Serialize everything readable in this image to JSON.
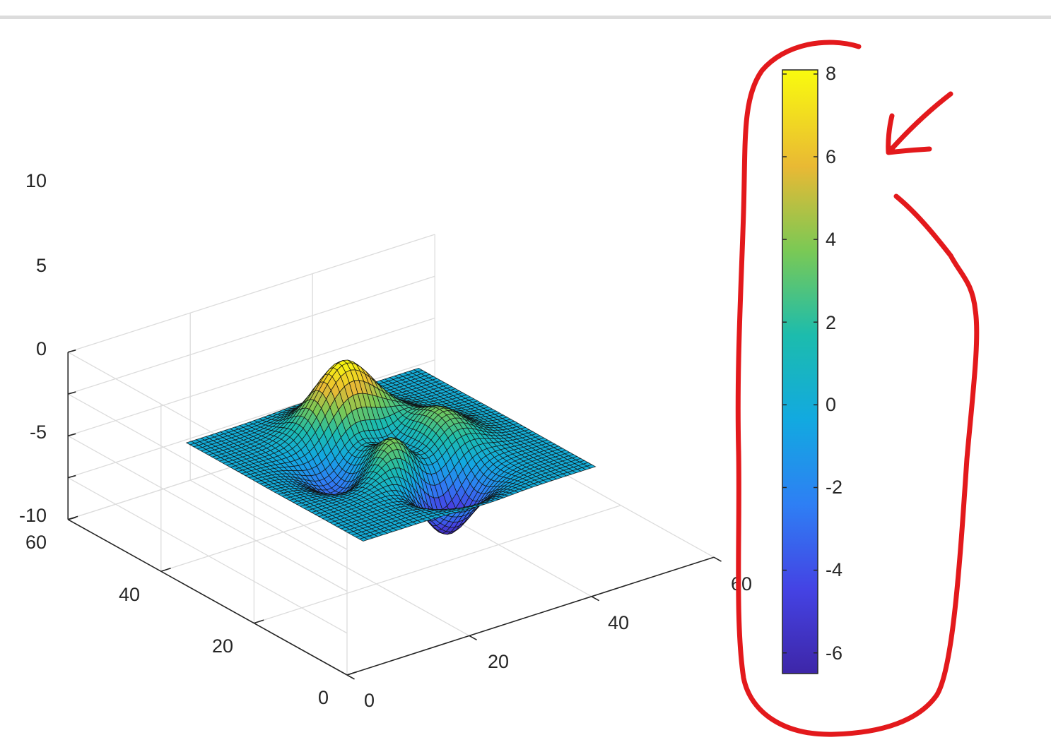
{
  "chart_data": {
    "type": "surface",
    "title": "",
    "xlabel": "",
    "ylabel": "",
    "zlabel": "",
    "colormap": "parula",
    "function": "peaks",
    "x_range": [
      0,
      60
    ],
    "y_range": [
      0,
      60
    ],
    "z_range": [
      -10,
      10
    ],
    "x_ticks": [
      "0",
      "20",
      "40",
      "60"
    ],
    "y_ticks": [
      "0",
      "20",
      "40",
      "60"
    ],
    "z_ticks": [
      "10",
      "5",
      "0",
      "-5",
      "-10"
    ],
    "grid": true,
    "peaks": [
      {
        "kind": "max",
        "x": 27,
        "y": 39,
        "z": 8.1
      },
      {
        "kind": "max",
        "x": 28,
        "y": 18,
        "z": 3.8
      },
      {
        "kind": "max",
        "x": 40,
        "y": 35,
        "z": 3.5
      },
      {
        "kind": "min",
        "x": 30,
        "y": 10,
        "z": -6.5
      },
      {
        "kind": "min",
        "x": 15,
        "y": 28,
        "z": -3.0
      }
    ],
    "colorbar": {
      "visible": true,
      "limits": [
        -6.5,
        8.1
      ],
      "ticks": [
        "8",
        "6",
        "4",
        "2",
        "0",
        "-2",
        "-4",
        "-6"
      ]
    }
  },
  "annotation": {
    "color": "#e3191c",
    "shapes": [
      "circle-around-colorbar",
      "arrow-pointing-to-colorbar"
    ]
  }
}
